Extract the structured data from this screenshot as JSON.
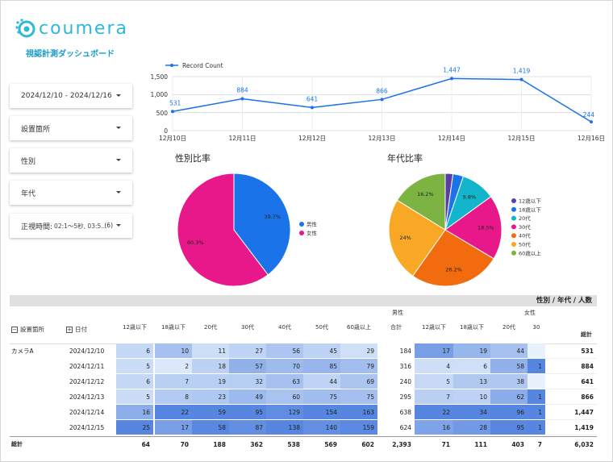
{
  "brand": {
    "logo_text": "coumera",
    "dashboard_title": "視認計測ダッシュボード",
    "accent": "#2fb9d8"
  },
  "filters": [
    {
      "label": "2024/12/10 - 2024/12/16"
    },
    {
      "label": "設置箇所"
    },
    {
      "label": "性別"
    },
    {
      "label": "年代"
    },
    {
      "label": "正視時間:",
      "sub": "02:1～5秒, 03:5...",
      "count": "(6)"
    }
  ],
  "line_chart": {
    "legend": "Record Count",
    "y_ticks": [
      "1,500",
      "1,000",
      "500",
      "0"
    ]
  },
  "gender_chart": {
    "title": "性別比率"
  },
  "age_chart": {
    "title": "年代比率"
  },
  "table": {
    "title": "性別 / 年代 / 人数",
    "group_headers": {
      "male": "男性",
      "female": "女性"
    },
    "row_headers": {
      "location": "設置箇所",
      "date": "日付"
    },
    "columns": [
      "12歳以下",
      "18歳以下",
      "20代",
      "30代",
      "40代",
      "50代",
      "60歳以上",
      "合計",
      "12歳以下",
      "18歳以下",
      "20代",
      "30"
    ],
    "total_col": "総計",
    "location_value": "カメラA",
    "rows": [
      {
        "date": "2024/12/10",
        "vals": [
          "6",
          "10",
          "11",
          "27",
          "56",
          "45",
          "29",
          "184",
          "17",
          "19",
          "44",
          ""
        ],
        "total": "531"
      },
      {
        "date": "2024/12/11",
        "vals": [
          "5",
          "2",
          "18",
          "57",
          "70",
          "85",
          "79",
          "316",
          "4",
          "6",
          "58",
          "1"
        ],
        "total": "884"
      },
      {
        "date": "2024/12/12",
        "vals": [
          "6",
          "7",
          "19",
          "32",
          "63",
          "44",
          "69",
          "240",
          "5",
          "13",
          "38",
          ""
        ],
        "total": "641"
      },
      {
        "date": "2024/12/13",
        "vals": [
          "5",
          "8",
          "23",
          "49",
          "60",
          "75",
          "75",
          "295",
          "7",
          "10",
          "62",
          "1"
        ],
        "total": "866"
      },
      {
        "date": "2024/12/14",
        "vals": [
          "16",
          "22",
          "59",
          "95",
          "129",
          "154",
          "163",
          "638",
          "22",
          "34",
          "96",
          "1"
        ],
        "total": "1,447"
      },
      {
        "date": "2024/12/15",
        "vals": [
          "25",
          "17",
          "58",
          "87",
          "138",
          "140",
          "159",
          "624",
          "16",
          "28",
          "95",
          "1"
        ],
        "total": "1,419"
      }
    ],
    "grand_label": "総計",
    "grand_vals": [
      "64",
      "70",
      "188",
      "362",
      "538",
      "569",
      "602",
      "2,393",
      "71",
      "111",
      "403",
      "7"
    ],
    "grand_total": "6,032"
  },
  "chart_data": [
    {
      "type": "line",
      "x": [
        "12月10日",
        "12月11日",
        "12月12日",
        "12月13日",
        "12月14日",
        "12月15日",
        "12月16日"
      ],
      "series": [
        {
          "name": "Record Count",
          "values": [
            531,
            884,
            641,
            866,
            1447,
            1419,
            244
          ],
          "color": "#1a73e8"
        }
      ],
      "ylim": [
        0,
        1500
      ],
      "grid": true,
      "legend": "top-left"
    },
    {
      "type": "pie",
      "title": "性別比率",
      "labels": [
        "男性",
        "女性"
      ],
      "values": [
        39.7,
        60.3
      ],
      "value_labels": [
        "39.7%",
        "60.3%"
      ],
      "colors": [
        "#1a73e8",
        "#e8178a"
      ],
      "legend": "right"
    },
    {
      "type": "pie",
      "title": "年代比率",
      "labels": [
        "12歳以下",
        "18歳以下",
        "20代",
        "30代",
        "40代",
        "50代",
        "60歳以上"
      ],
      "values": [
        2.2,
        3.0,
        9.8,
        18.5,
        26.2,
        24.0,
        16.2
      ],
      "value_labels": [
        "",
        "",
        "9.8%",
        "18.5%",
        "26.2%",
        "24%",
        "16.2%"
      ],
      "colors": [
        "#5b3ea4",
        "#1a73e8",
        "#12b5cb",
        "#e8178a",
        "#f26b0f",
        "#f9a825",
        "#7cb342"
      ],
      "legend": "right"
    }
  ]
}
